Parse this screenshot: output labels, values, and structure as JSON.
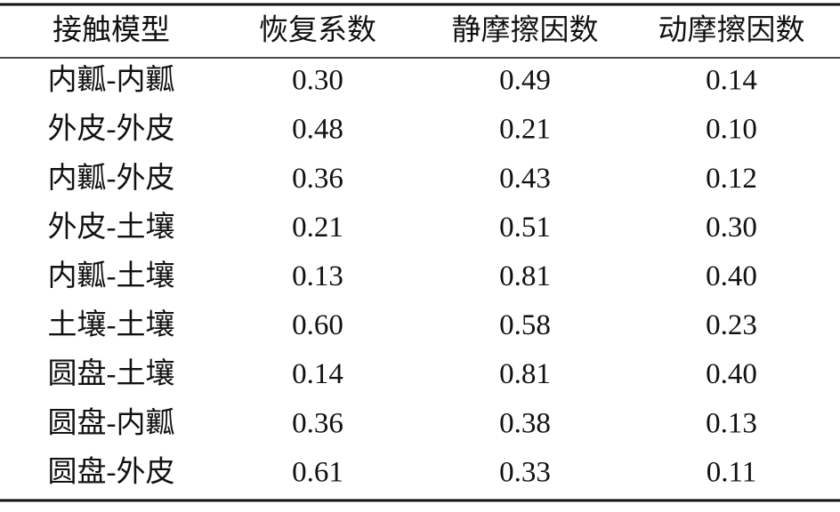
{
  "table": {
    "header": [
      "接触模型",
      "恢复系数",
      "静摩擦因数",
      "动摩擦因数"
    ],
    "rows": [
      [
        "内瓤-内瓤",
        "0.30",
        "0.49",
        "0.14"
      ],
      [
        "外皮-外皮",
        "0.48",
        "0.21",
        "0.10"
      ],
      [
        "内瓤-外皮",
        "0.36",
        "0.43",
        "0.12"
      ],
      [
        "外皮-土壤",
        "0.21",
        "0.51",
        "0.30"
      ],
      [
        "内瓤-土壤",
        "0.13",
        "0.81",
        "0.40"
      ],
      [
        "土壤-土壤",
        "0.60",
        "0.58",
        "0.23"
      ],
      [
        "圆盘-土壤",
        "0.14",
        "0.81",
        "0.40"
      ],
      [
        "圆盘-内瓤",
        "0.36",
        "0.38",
        "0.13"
      ],
      [
        "圆盘-外皮",
        "0.61",
        "0.33",
        "0.11"
      ]
    ]
  }
}
